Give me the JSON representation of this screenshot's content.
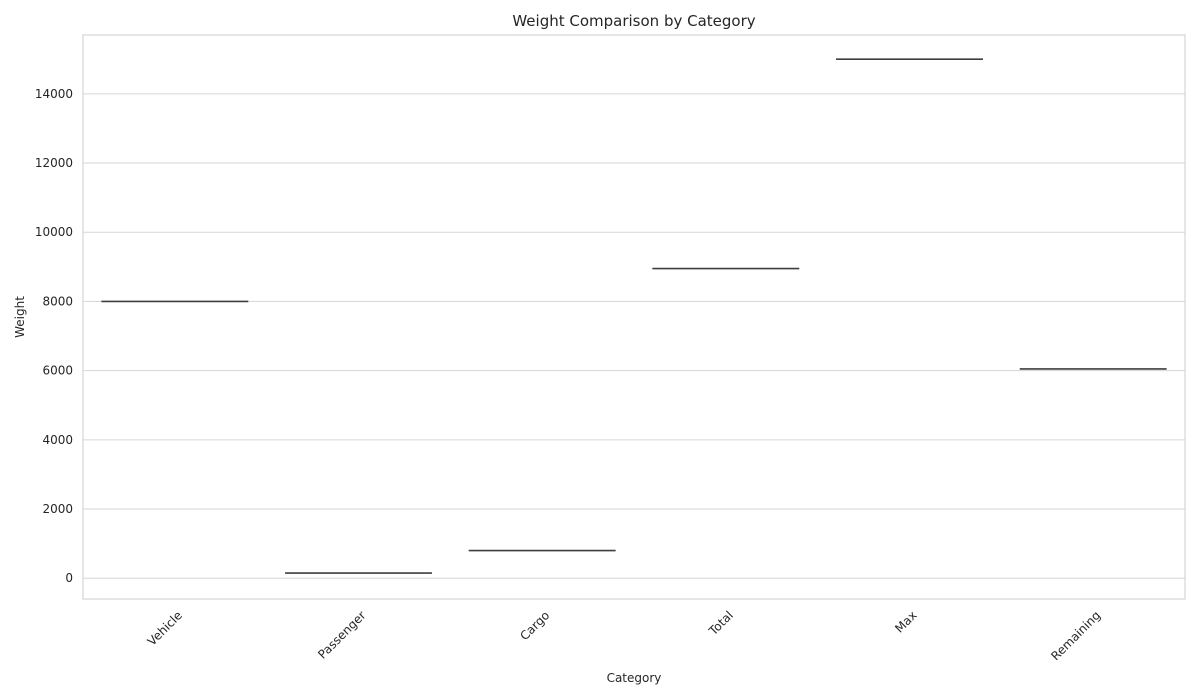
{
  "chart_data": {
    "type": "box",
    "title": "Weight Comparison by Category",
    "xlabel": "Category",
    "ylabel": "Weight",
    "categories": [
      "Vehicle",
      "Passenger",
      "Cargo",
      "Total",
      "Max",
      "Remaining"
    ],
    "values": [
      8000,
      150,
      800,
      8950,
      15000,
      6050
    ],
    "ylim": [
      -600,
      15700
    ],
    "yticks": [
      0,
      2000,
      4000,
      6000,
      8000,
      10000,
      12000,
      14000
    ],
    "grid": true,
    "line_color": "#3f3f3f"
  }
}
